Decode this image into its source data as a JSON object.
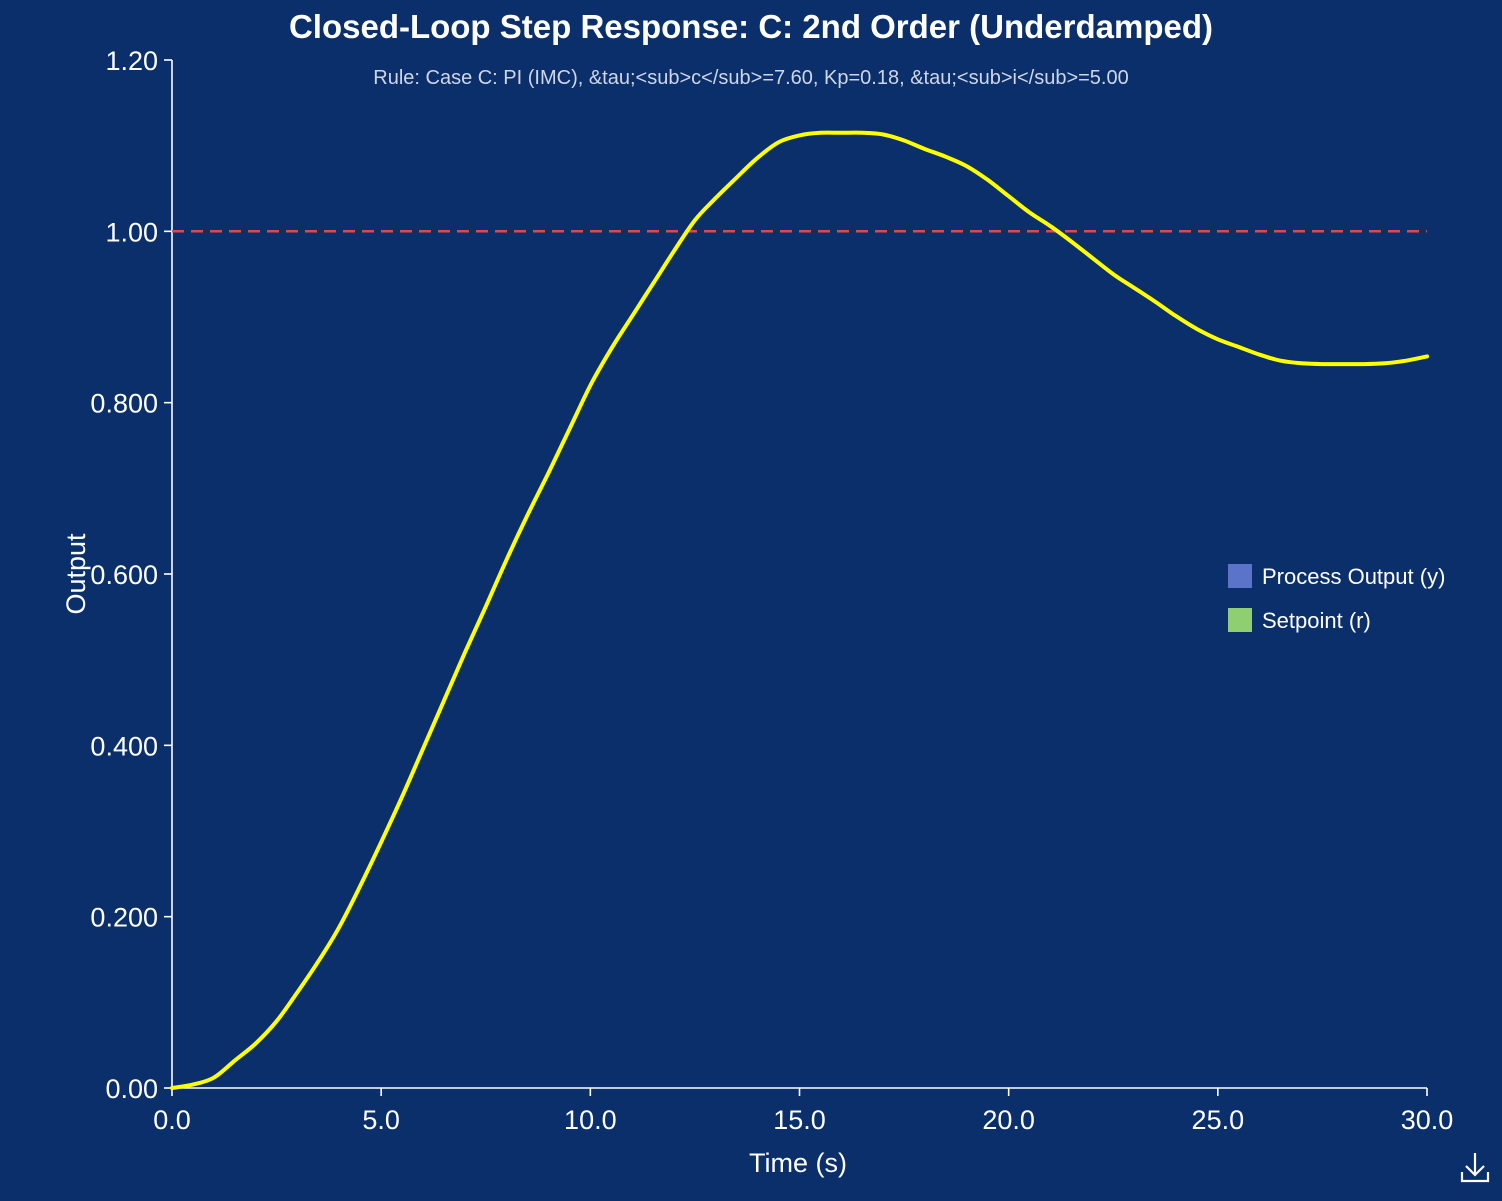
{
  "chart_data": {
    "type": "line",
    "title": "Closed-Loop Step Response: C: 2nd Order (Underdamped)",
    "subtitle": "Rule: Case C: PI (IMC), &tau;<sub>c</sub>=7.60, Kp=0.18, &tau;<sub>i</sub>=5.00",
    "xlabel": "Time (s)",
    "ylabel": "Output",
    "xlim": [
      0,
      30
    ],
    "ylim": [
      0,
      1.2
    ],
    "x_ticks": [
      0,
      5,
      10,
      15,
      20,
      25,
      30
    ],
    "x_tick_labels": [
      "0.0",
      "5.0",
      "10.0",
      "15.0",
      "20.0",
      "25.0",
      "30.0"
    ],
    "y_ticks": [
      0,
      0.2,
      0.4,
      0.6,
      0.8,
      1.0,
      1.2
    ],
    "y_tick_labels": [
      "0.00",
      "0.200",
      "0.400",
      "0.600",
      "0.800",
      "1.00",
      "1.20"
    ],
    "grid": false,
    "legend_position": "right",
    "series": [
      {
        "name": "Process Output (y)",
        "legend_color": "#5b73c8",
        "color": "#ffff00",
        "style": "solid",
        "x": [
          0,
          0.5,
          1.0,
          1.5,
          2.0,
          2.5,
          3.0,
          3.5,
          4.0,
          4.5,
          5.0,
          5.5,
          6.0,
          6.5,
          7.0,
          7.5,
          8.0,
          8.5,
          9.0,
          9.5,
          10.0,
          10.5,
          11.0,
          11.5,
          12.0,
          12.5,
          13.0,
          13.5,
          14.0,
          14.5,
          15.0,
          15.5,
          16.0,
          16.5,
          17.0,
          17.5,
          18.0,
          18.5,
          19.0,
          19.5,
          20.0,
          20.5,
          21.0,
          21.5,
          22.0,
          22.5,
          23.0,
          23.5,
          24.0,
          24.5,
          25.0,
          25.5,
          26.0,
          26.5,
          27.0,
          27.5,
          28.0,
          28.5,
          29.0,
          29.5,
          30.0
        ],
        "y": [
          0.0,
          0.004,
          0.012,
          0.032,
          0.052,
          0.078,
          0.112,
          0.148,
          0.188,
          0.236,
          0.287,
          0.34,
          0.396,
          0.452,
          0.508,
          0.562,
          0.617,
          0.669,
          0.718,
          0.769,
          0.82,
          0.863,
          0.901,
          0.939,
          0.977,
          1.013,
          1.039,
          1.063,
          1.086,
          1.104,
          1.112,
          1.115,
          1.115,
          1.115,
          1.113,
          1.106,
          1.096,
          1.087,
          1.076,
          1.06,
          1.041,
          1.022,
          1.006,
          0.988,
          0.969,
          0.95,
          0.934,
          0.918,
          0.901,
          0.886,
          0.874,
          0.865,
          0.856,
          0.849,
          0.846,
          0.845,
          0.845,
          0.845,
          0.846,
          0.849,
          0.854
        ]
      },
      {
        "name": "Setpoint (r)",
        "legend_color": "#8fcf72",
        "color": "#e04848",
        "style": "dashed",
        "x": [
          0,
          30
        ],
        "y": [
          1.0,
          1.0
        ]
      }
    ]
  },
  "icons": {
    "download": "download-icon"
  }
}
